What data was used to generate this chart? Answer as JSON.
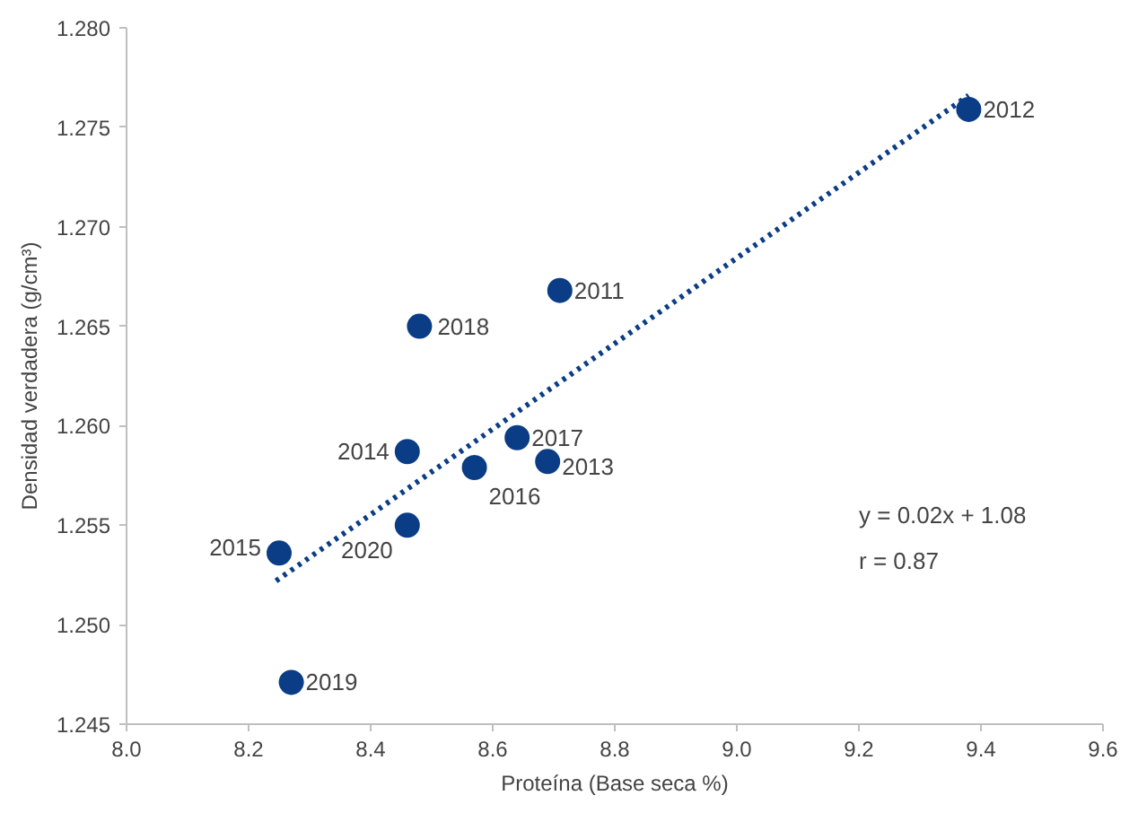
{
  "chart_data": {
    "type": "scatter",
    "xlabel": "Proteína (Base seca %)",
    "ylabel": "Densidad verdadera (g/cm³)",
    "xlim": [
      8.0,
      9.6
    ],
    "xticks": [
      {
        "value": 8.0,
        "label": "8.0"
      },
      {
        "value": 8.2,
        "label": "8.2"
      },
      {
        "value": 8.4,
        "label": "8.4"
      },
      {
        "value": 8.6,
        "label": "8.6"
      },
      {
        "value": 8.8,
        "label": "8.8"
      },
      {
        "value": 9.0,
        "label": "9.0"
      },
      {
        "value": 9.2,
        "label": "9.2"
      },
      {
        "value": 9.4,
        "label": "9.4"
      },
      {
        "value": 9.6,
        "label": "9.6"
      }
    ],
    "ylim": [
      1.245,
      1.28
    ],
    "yticks": [
      {
        "value": 1.245,
        "label": "1.245"
      },
      {
        "value": 1.25,
        "label": "1.250"
      },
      {
        "value": 1.255,
        "label": "1.255"
      },
      {
        "value": 1.26,
        "label": "1.260"
      },
      {
        "value": 1.265,
        "label": "1.265"
      },
      {
        "value": 1.27,
        "label": "1.270"
      },
      {
        "value": 1.275,
        "label": "1.275"
      },
      {
        "value": 1.28,
        "label": "1.280"
      }
    ],
    "grid": false,
    "marker": "circle",
    "series": [
      {
        "color": "#0b3d86",
        "x": [
          9.38,
          8.71,
          8.48,
          8.46,
          8.64,
          8.57,
          8.69,
          8.46,
          8.25,
          8.27
        ],
        "values": [
          1.2759,
          1.2668,
          1.265,
          1.2587,
          1.2594,
          1.2579,
          1.2582,
          1.255,
          1.2536,
          1.2471
        ]
      },
      {
        "type": "line",
        "marker": "none",
        "color": "#0b3d86",
        "line_style": "dotted",
        "x": [
          8.245,
          9.38
        ],
        "values": [
          1.2522,
          1.2766
        ]
      }
    ],
    "annotations": [
      {
        "text": "2012",
        "x": 9.38,
        "y": 1.2759
      },
      {
        "text": "2011",
        "x": 8.71,
        "y": 1.2668
      },
      {
        "text": "2018",
        "x": 8.48,
        "y": 1.265
      },
      {
        "text": "2014",
        "x": 8.46,
        "y": 1.2587
      },
      {
        "text": "2017",
        "x": 8.64,
        "y": 1.2594
      },
      {
        "text": "2016",
        "x": 8.57,
        "y": 1.2579
      },
      {
        "text": "2013",
        "x": 8.69,
        "y": 1.2582
      },
      {
        "text": "2020",
        "x": 8.46,
        "y": 1.255
      },
      {
        "text": "2015",
        "x": 8.25,
        "y": 1.2536
      },
      {
        "text": "2019",
        "x": 8.27,
        "y": 1.2471
      },
      "y = 0.02x + 1.08",
      "r = 0.87"
    ]
  }
}
